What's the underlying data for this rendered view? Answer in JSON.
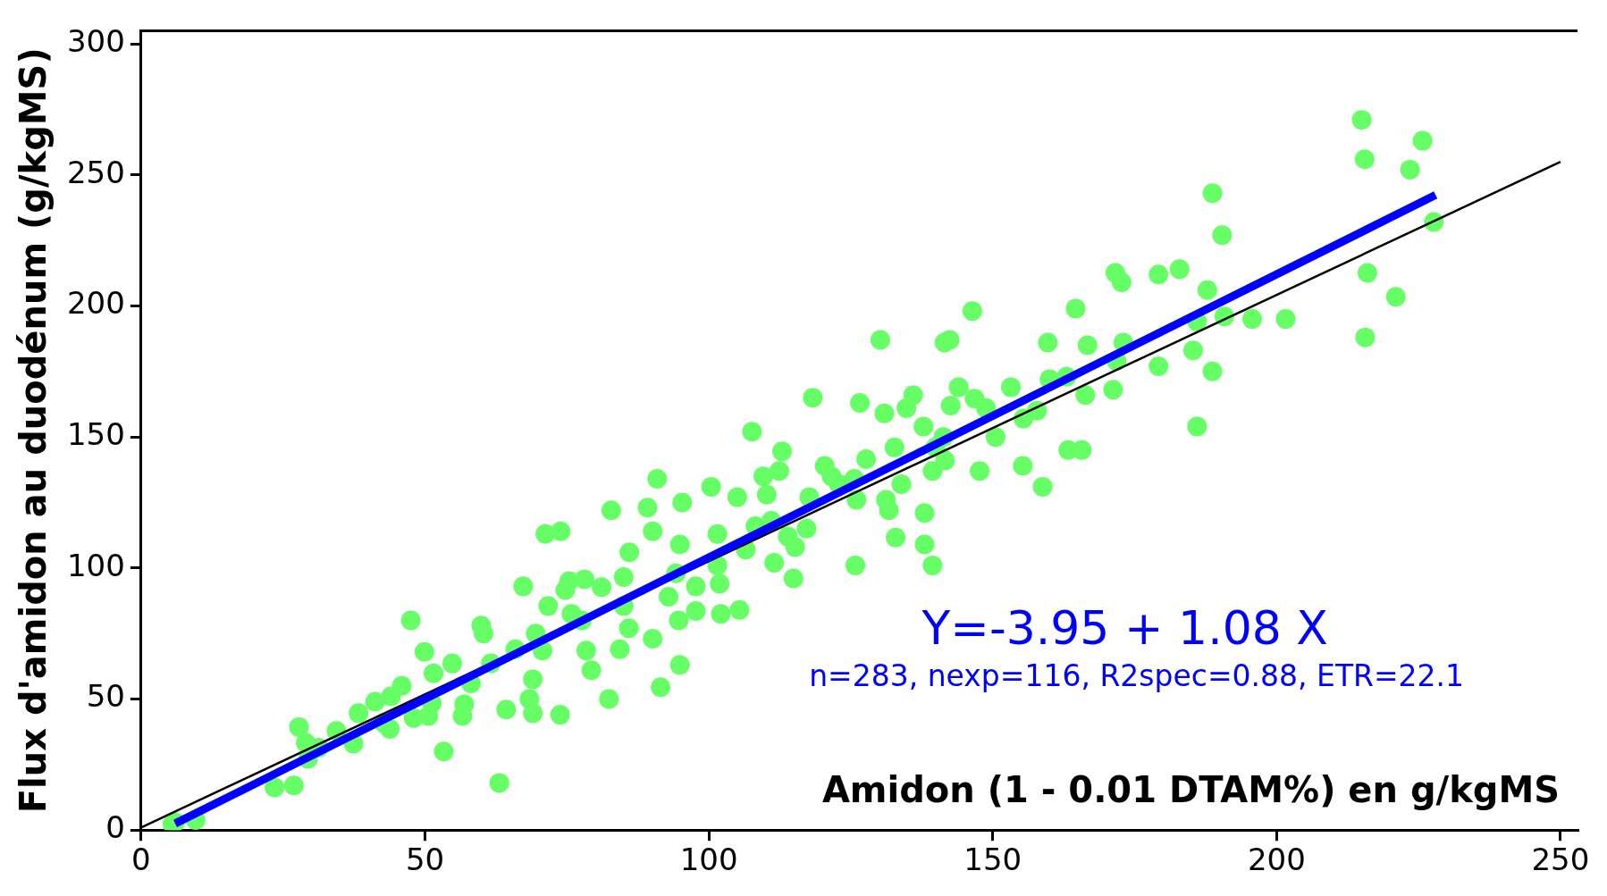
{
  "chart_data": {
    "type": "scatter",
    "xlabel": "Amidon (1 - 0.01 DTAM%) en g/kgMS",
    "ylabel": "Flux d'amidon au duodénum (g/kgMS)",
    "annotations": [
      "Y=-3.95 + 1.08 X",
      "n=283, nexp=116, R2spec=0.88, ETR=22.1"
    ],
    "xlim": [
      0,
      253
    ],
    "ylim": [
      0,
      305
    ],
    "xticks": [
      0,
      50,
      100,
      150,
      200,
      250
    ],
    "yticks": [
      0,
      50,
      100,
      150,
      200,
      250,
      300
    ],
    "grid": false,
    "legend": false,
    "series": [
      {
        "marker": "circle",
        "color": "#66ff66",
        "x": [
          215,
          215.5,
          225.7,
          223.5,
          227.7,
          188.7,
          216,
          215.6,
          221,
          190.4,
          187.8,
          186,
          185.3,
          188.7,
          186,
          190.8,
          195.7,
          201.6,
          179.2,
          182.9,
          171.6,
          172.7,
          179.2,
          173,
          171.8,
          171.2,
          166.7,
          164.6,
          166.3,
          165.7,
          163.3,
          163,
          160,
          159.7,
          158.8,
          157.8,
          155.3,
          153.2,
          150.5,
          155.4,
          148.8,
          147.7,
          146.8,
          146.4,
          144,
          142.6,
          141.5,
          142.4,
          141.3,
          139.9,
          141.6,
          139.4,
          139.4,
          138,
          138,
          137.8,
          136,
          134.8,
          133.9,
          132.7,
          132.9,
          131.7,
          131.2,
          130.9,
          130.2,
          127.7,
          126.6,
          126,
          125.8,
          125.6,
          122.9,
          121.6,
          120.4,
          118.3,
          117.7,
          117.2,
          114.9,
          115.2,
          113.9,
          112.9,
          112.4,
          111.5,
          111,
          110.2,
          109.6,
          107.6,
          108.2,
          106.5,
          105.4,
          105,
          101.5,
          101.5,
          101.9,
          102.1,
          100.4,
          97.7,
          97.7,
          95.3,
          94.9,
          94.7,
          94.9,
          94.2,
          92.9,
          91.5,
          90.9,
          90.1,
          89.2,
          90.1,
          86,
          85,
          85,
          85.9,
          84.3,
          82.8,
          82.4,
          81.1,
          78.1,
          77.6,
          78.4,
          79.3,
          75.8,
          75.4,
          74.7,
          73.8,
          73.9,
          71.2,
          71.7,
          70.7,
          69.5,
          69,
          68.4,
          69,
          67.3,
          65.9,
          64.3,
          63.1,
          61.6,
          60.3,
          59.9,
          58.1,
          56.9,
          56.6,
          54.8,
          53.3,
          51.2,
          50.6,
          49.9,
          51.5,
          47.5,
          48,
          45.9,
          44,
          43.8,
          42.7,
          41.2,
          38.3,
          37.4,
          34.4,
          29,
          29.4,
          27.8,
          26.9,
          23.5,
          31.3,
          6,
          9.6,
          5.5
        ],
        "values": [
          271,
          256,
          263,
          252,
          232,
          243,
          212.6,
          188,
          203.5,
          227,
          206,
          194,
          183,
          175,
          154,
          196,
          195,
          195,
          212,
          214,
          212.6,
          209,
          177,
          186,
          179,
          168,
          185,
          199,
          166,
          145,
          145,
          173,
          172,
          186,
          131,
          160,
          139,
          169,
          150,
          157,
          161,
          137,
          164.6,
          198,
          169,
          162,
          186,
          187,
          150,
          146,
          141,
          137,
          101,
          109,
          121,
          154,
          166,
          161,
          132,
          146,
          111.6,
          122,
          126,
          159,
          187,
          141.5,
          163,
          126,
          101,
          134,
          132,
          135,
          139,
          165,
          127,
          115,
          96,
          108,
          112,
          144.5,
          137,
          102,
          118,
          128,
          135,
          152,
          116,
          107,
          84,
          127,
          101,
          113,
          94,
          82.5,
          131,
          93,
          83.6,
          125,
          109,
          80,
          63,
          98,
          89,
          54.5,
          134,
          114,
          123,
          73,
          106,
          96.5,
          85.5,
          77,
          69,
          122,
          50,
          92.7,
          95.7,
          80,
          68.5,
          61,
          82.5,
          95,
          91.6,
          44,
          114,
          113,
          85.5,
          68.5,
          75,
          57.5,
          50,
          44.6,
          93,
          69,
          46,
          18,
          63.6,
          75,
          78,
          56,
          48,
          43.5,
          63.6,
          30,
          48.4,
          43.5,
          68,
          59.8,
          80,
          42.8,
          55,
          51,
          38.6,
          40.9,
          49,
          44.6,
          33,
          37.8,
          33.3,
          27.2,
          39.3,
          17,
          16.3,
          31.4,
          3,
          3.8,
          2.3
        ]
      },
      {
        "type": "line",
        "color": "#0000ff",
        "x": [
          6,
          228
        ],
        "values": [
          2.5,
          242.3
        ]
      },
      {
        "type": "line",
        "color": "#000000",
        "x": [
          0,
          250
        ],
        "values": [
          1,
          255
        ]
      }
    ]
  }
}
